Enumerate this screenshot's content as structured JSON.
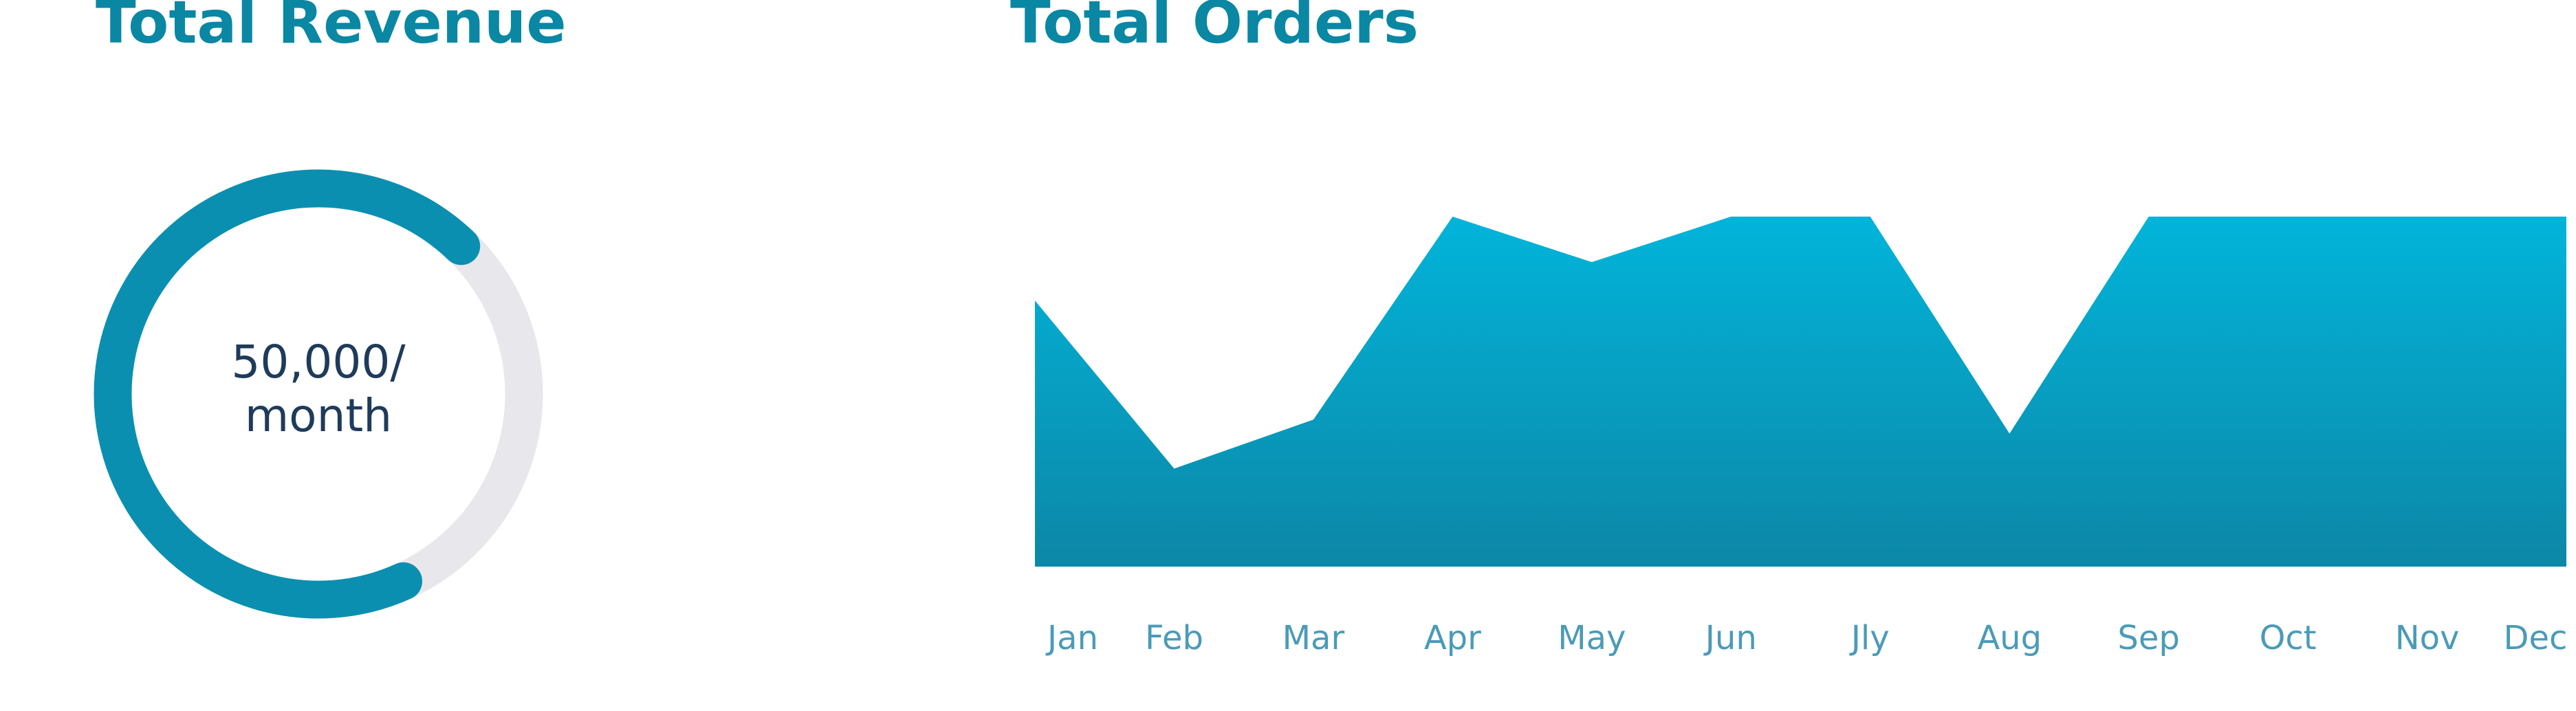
{
  "chart_data": [
    {
      "type": "gauge",
      "title": "Total Revenue",
      "value": 69,
      "ylim": [
        0,
        100
      ],
      "color": "#0b8fb0",
      "track_color": "#e7e7ec",
      "center_label": [
        "50,000/",
        "month"
      ]
    },
    {
      "type": "area",
      "title": "Total Orders",
      "categories": [
        "Jan",
        "Feb",
        "Mar",
        "Apr",
        "May",
        "Jun",
        "Jly",
        "Aug",
        "Sep",
        "Oct",
        "Nov",
        "Dec"
      ],
      "values": [
        76,
        28,
        42,
        100,
        87,
        100,
        100,
        38,
        100,
        100,
        100,
        100
      ],
      "ylim": [
        0,
        100
      ],
      "color": "#05a6c9"
    }
  ]
}
